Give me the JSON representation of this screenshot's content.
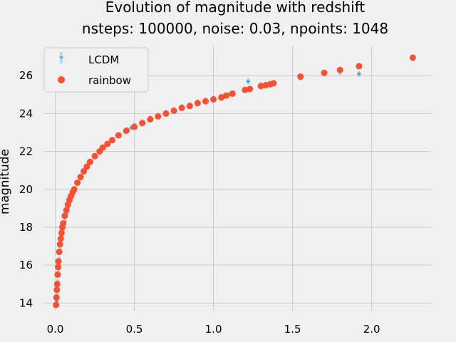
{
  "chart_data": {
    "type": "scatter",
    "title": "Evolution of magnitude with redshift",
    "subtitle": "nsteps: 100000, noise: 0.03, npoints: 1048",
    "xlabel": "",
    "ylabel": "magnitude",
    "xlim": [
      -0.07,
      2.38
    ],
    "ylim": [
      13.6,
      27.55
    ],
    "x_ticks": [
      0.0,
      0.5,
      1.0,
      1.5,
      2.0
    ],
    "x_tick_labels": [
      "0.0",
      "0.5",
      "1.0",
      "1.5",
      "2.0"
    ],
    "y_ticks": [
      14,
      16,
      18,
      20,
      22,
      24,
      26
    ],
    "y_tick_labels": [
      "14",
      "16",
      "18",
      "20",
      "22",
      "24",
      "26"
    ],
    "grid": true,
    "legend_position": "top-left",
    "colors": {
      "LCDM": "#008fd5",
      "rainbow": "#fc4f30",
      "background": "#f0f0f0",
      "grid": "#cbcbcb"
    },
    "series": [
      {
        "name": "LCDM",
        "marker": "errorbar",
        "x": [
          0.01,
          0.012,
          0.015,
          0.018,
          0.02,
          0.025,
          0.03,
          0.035,
          0.04,
          0.05,
          0.06,
          0.07,
          0.08,
          0.09,
          0.1,
          0.12,
          0.14,
          0.16,
          0.18,
          0.2,
          0.22,
          0.25,
          0.28,
          0.3,
          0.33,
          0.36,
          0.4,
          0.44,
          0.48,
          0.5,
          0.55,
          0.6,
          0.65,
          0.7,
          0.75,
          0.8,
          0.85,
          0.9,
          0.95,
          1.0,
          1.05,
          1.1,
          1.22,
          1.3,
          1.35,
          1.55,
          1.7,
          1.8,
          1.92,
          2.26
        ],
        "y": [
          14.1,
          14.6,
          15.1,
          15.5,
          15.8,
          16.3,
          16.8,
          17.1,
          17.4,
          17.9,
          18.3,
          18.7,
          19.0,
          19.3,
          19.5,
          19.95,
          20.35,
          20.65,
          20.95,
          21.2,
          21.45,
          21.75,
          22.0,
          22.2,
          22.4,
          22.6,
          22.85,
          23.05,
          23.25,
          23.35,
          23.55,
          23.75,
          23.9,
          24.05,
          24.2,
          24.35,
          24.45,
          24.6,
          24.7,
          24.8,
          24.9,
          25.0,
          25.7,
          25.5,
          25.55,
          25.9,
          26.1,
          26.2,
          26.1,
          26.95
        ]
      },
      {
        "name": "rainbow",
        "marker": "circle",
        "x": [
          0.005,
          0.008,
          0.01,
          0.012,
          0.015,
          0.018,
          0.02,
          0.025,
          0.03,
          0.035,
          0.04,
          0.045,
          0.05,
          0.06,
          0.07,
          0.08,
          0.09,
          0.1,
          0.11,
          0.12,
          0.14,
          0.16,
          0.18,
          0.2,
          0.22,
          0.25,
          0.28,
          0.3,
          0.33,
          0.36,
          0.4,
          0.45,
          0.5,
          0.55,
          0.6,
          0.65,
          0.7,
          0.75,
          0.8,
          0.85,
          0.9,
          0.95,
          1.0,
          1.05,
          1.08,
          1.12,
          1.2,
          1.23,
          1.3,
          1.33,
          1.36,
          1.38,
          1.55,
          1.7,
          1.8,
          1.92,
          2.26
        ],
        "y": [
          13.9,
          14.3,
          14.7,
          15.0,
          15.5,
          15.9,
          16.2,
          16.7,
          17.1,
          17.4,
          17.7,
          18.0,
          18.2,
          18.6,
          18.9,
          19.2,
          19.45,
          19.65,
          19.85,
          20.0,
          20.35,
          20.65,
          20.95,
          21.2,
          21.45,
          21.75,
          22.0,
          22.2,
          22.4,
          22.6,
          22.85,
          23.1,
          23.3,
          23.5,
          23.7,
          23.85,
          24.0,
          24.15,
          24.3,
          24.4,
          24.55,
          24.65,
          24.75,
          24.85,
          24.95,
          25.05,
          25.25,
          25.3,
          25.45,
          25.5,
          25.55,
          25.6,
          25.95,
          26.15,
          26.3,
          26.5,
          26.95
        ]
      }
    ]
  }
}
